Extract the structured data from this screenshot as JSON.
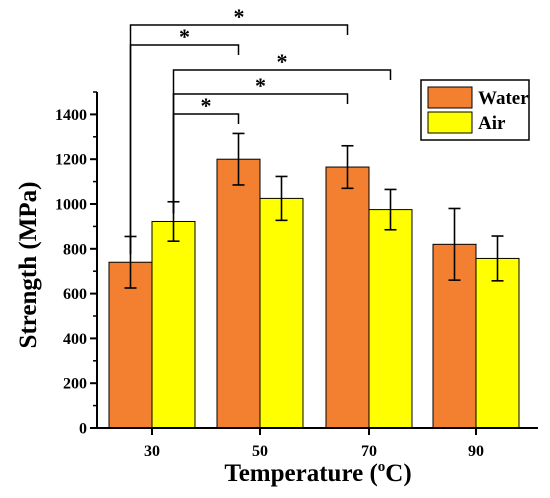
{
  "chart_data": {
    "type": "bar",
    "title": "",
    "xlabel": "Temperature (",
    "xlabel_sup": "o",
    "xlabel_unit": "C)",
    "ylabel": "Strength (MPa)",
    "ylim": [
      0,
      1500
    ],
    "yticks": [
      "0",
      "200",
      "400",
      "600",
      "800",
      "1000",
      "1200",
      "1400"
    ],
    "categories": [
      "30",
      "50",
      "70",
      "90"
    ],
    "series": [
      {
        "name": "Water",
        "color": "#f28030",
        "values": [
          740,
          1200,
          1165,
          820
        ],
        "errors": [
          115,
          115,
          95,
          160
        ]
      },
      {
        "name": "Air",
        "color": "#ffff00",
        "values": [
          922,
          1025,
          975,
          757
        ],
        "errors": [
          88,
          98,
          90,
          100
        ]
      }
    ],
    "legend_position": "top-right",
    "significance": [
      {
        "from": "30-water",
        "to": "70-water",
        "label": "*"
      },
      {
        "from": "30-water",
        "to": "50-water",
        "label": "*"
      },
      {
        "from": "30-air",
        "to": "70-air",
        "label": "*"
      },
      {
        "from": "30-air",
        "to": "70-water",
        "label": "*"
      },
      {
        "from": "30-air",
        "to": "50-water",
        "label": "*"
      }
    ]
  }
}
